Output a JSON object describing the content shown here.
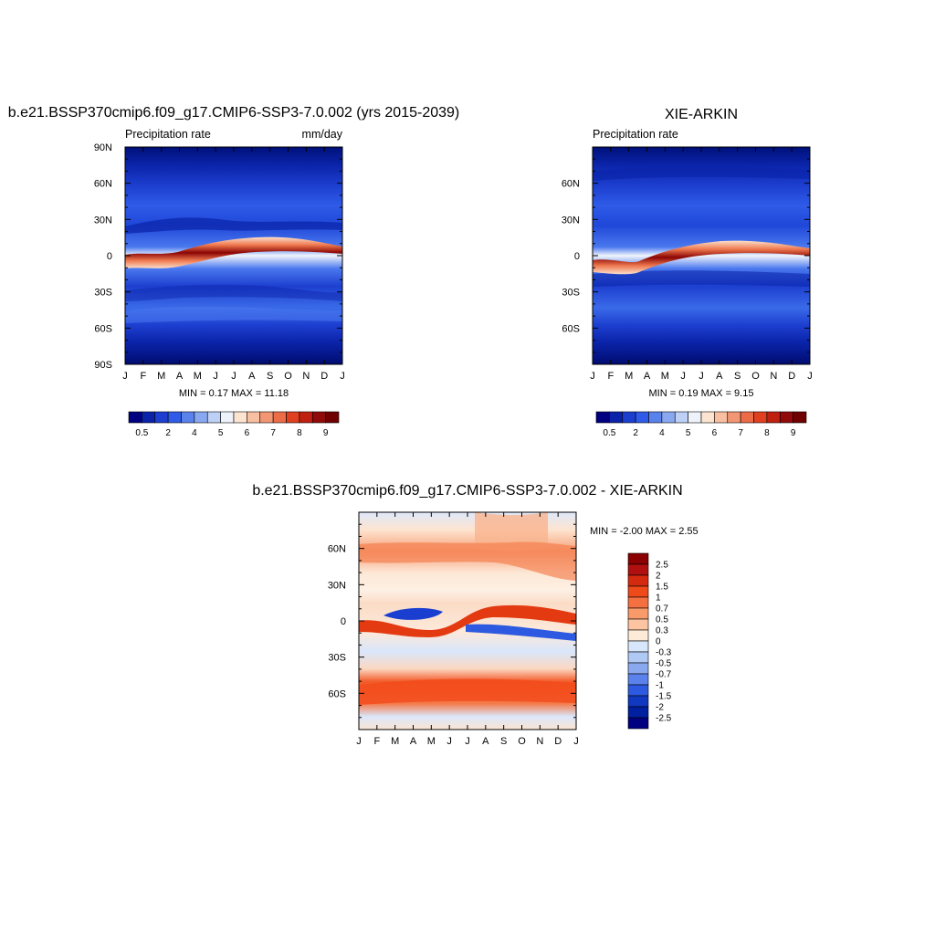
{
  "chart_data": [
    {
      "type": "heatmap",
      "title": "b.e21.BSSP370cmip6.f09_g17.CMIP6-SSP3-7.0.002 (yrs 2015-2039)",
      "left_label": "Precipitation rate",
      "right_label": "mm/day",
      "x_ticks": [
        "J",
        "F",
        "M",
        "A",
        "M",
        "J",
        "J",
        "A",
        "S",
        "O",
        "N",
        "D",
        "J"
      ],
      "y_ticks": [
        "90N",
        "60N",
        "30N",
        "0",
        "30S",
        "60S",
        "90S"
      ],
      "minmax": "MIN =   0.17 MAX =  11.18",
      "colorbar_labels": [
        "0.5",
        "2",
        "4",
        "5",
        "6",
        "7",
        "8",
        "9"
      ],
      "colorbar_colors": [
        "#000080",
        "#0a23a8",
        "#1d3fd0",
        "#2f5be8",
        "#5a82ec",
        "#8aa8f0",
        "#bed0f6",
        "#eef3fb",
        "#fde4d0",
        "#f8bfa0",
        "#f29674",
        "#ec6c48",
        "#e04020",
        "#c02010",
        "#900a0a",
        "#700000"
      ]
    },
    {
      "type": "heatmap",
      "title": "XIE-ARKIN",
      "left_label": "Precipitation rate",
      "x_ticks": [
        "J",
        "F",
        "M",
        "A",
        "M",
        "J",
        "J",
        "A",
        "S",
        "O",
        "N",
        "D",
        "J"
      ],
      "y_ticks": [
        "60N",
        "30N",
        "0",
        "30S",
        "60S"
      ],
      "minmax": "MIN =   0.19 MAX =   9.15",
      "colorbar_labels": [
        "0.5",
        "2",
        "4",
        "5",
        "6",
        "7",
        "8",
        "9"
      ]
    },
    {
      "type": "heatmap",
      "title": "b.e21.BSSP370cmip6.f09_g17.CMIP6-SSP3-7.0.002 - XIE-ARKIN",
      "x_ticks": [
        "J",
        "F",
        "M",
        "A",
        "M",
        "J",
        "J",
        "A",
        "S",
        "O",
        "N",
        "D",
        "J"
      ],
      "y_ticks": [
        "60N",
        "30N",
        "0",
        "30S",
        "60S"
      ],
      "minmax": "MIN =  -2.00 MAX =   2.55",
      "colorbar_labels": [
        "2.5",
        "2",
        "1.5",
        "1",
        "0.7",
        "0.5",
        "0.3",
        "0",
        "-0.3",
        "-0.5",
        "-0.7",
        "-1",
        "-1.5",
        "-2",
        "-2.5"
      ],
      "colorbar_colors": [
        "#8b0000",
        "#b01010",
        "#d42a10",
        "#ee4a1a",
        "#f47040",
        "#f89a6a",
        "#fcc4a0",
        "#fdebd8",
        "#d8e6fb",
        "#b0c8f4",
        "#8aa8ee",
        "#5a82ea",
        "#2d5ae0",
        "#1038c0",
        "#0020a0",
        "#000080"
      ]
    }
  ]
}
